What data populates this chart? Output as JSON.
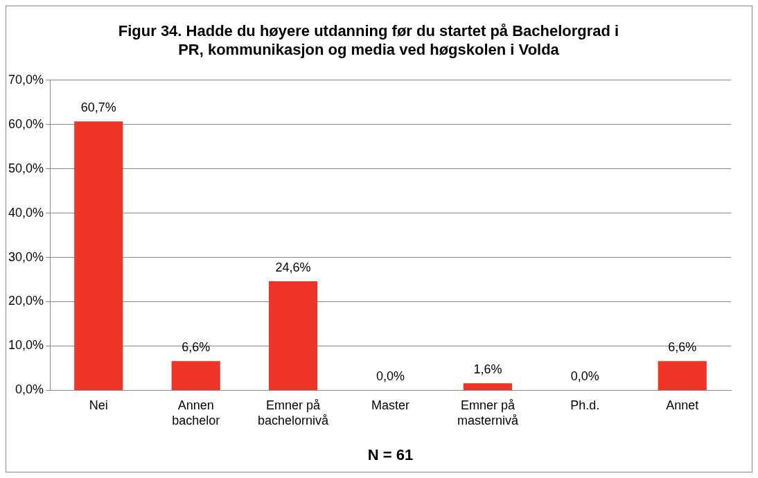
{
  "chart_data": {
    "type": "bar",
    "title": "Figur 34. Hadde du høyere utdanning før du startet på Bachelorgrad i PR, kommunikasjon og media ved høgskolen i Volda",
    "xlabel": "N = 61",
    "categories": [
      "Nei",
      "Annen bachelor",
      "Emner på bachelornivå",
      "Master",
      "Emner på masternivå",
      "Ph.d.",
      "Annet"
    ],
    "values": [
      60.7,
      6.6,
      24.6,
      0,
      1.6,
      0,
      6.6
    ],
    "value_labels": [
      "60,7%",
      "6,6%",
      "24,6%",
      "0,0%",
      "1,6%",
      "0,0%",
      "6,6%"
    ],
    "color": "#ee3528",
    "ylim": [
      0,
      70
    ],
    "yticks": [
      {
        "value": 0,
        "label": "0,0%"
      },
      {
        "value": 10,
        "label": "10,0%"
      },
      {
        "value": 20,
        "label": "20,0%"
      },
      {
        "value": 30,
        "label": "30,0%"
      },
      {
        "value": 40,
        "label": "40,0%"
      },
      {
        "value": 50,
        "label": "50,0%"
      },
      {
        "value": 60,
        "label": "60,0%"
      },
      {
        "value": 70,
        "label": "70,0%"
      }
    ],
    "grid": "y",
    "legend": false
  }
}
